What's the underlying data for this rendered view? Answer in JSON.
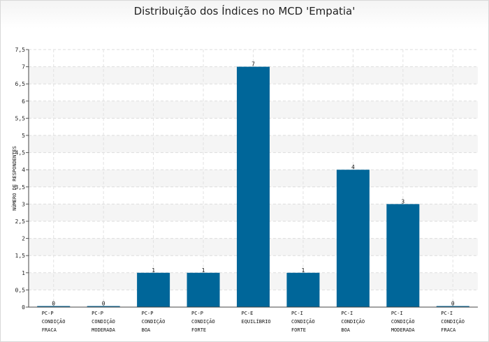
{
  "chart_data": {
    "type": "bar",
    "title": "Distribuição dos Índices no MCD 'Empatia'",
    "xlabel": "",
    "ylabel": "NÚMERO DE RESPONDENTES",
    "ylim": [
      0,
      7.5
    ],
    "ytick_step": 0.5,
    "yticks": [
      "0",
      "0,5",
      "1",
      "1,5",
      "2",
      "2,5",
      "3",
      "3,5",
      "4",
      "4,5",
      "5",
      "5,5",
      "6",
      "6,5",
      "7",
      "7,5"
    ],
    "grid": true,
    "bar_color": "#006699",
    "categories": [
      [
        "PC-P",
        "CONDIÇÃO",
        "FRACA"
      ],
      [
        "PC-P",
        "CONDIÇÃO",
        "MODERADA"
      ],
      [
        "PC-P",
        "CONDIÇÃO",
        "BOA"
      ],
      [
        "PC-P",
        "CONDIÇÃO",
        "FORTE"
      ],
      [
        "PC-E",
        "EQUILÍBRIO"
      ],
      [
        "PC-I",
        "CONDIÇÃO",
        "FORTE"
      ],
      [
        "PC-I",
        "CONDIÇÃO",
        "BOA"
      ],
      [
        "PC-I",
        "CONDIÇÃO",
        "MODERADA"
      ],
      [
        "PC-I",
        "CONDIÇÃO",
        "FRACA"
      ]
    ],
    "values": [
      0,
      0,
      1,
      1,
      7,
      1,
      4,
      3,
      0
    ]
  }
}
